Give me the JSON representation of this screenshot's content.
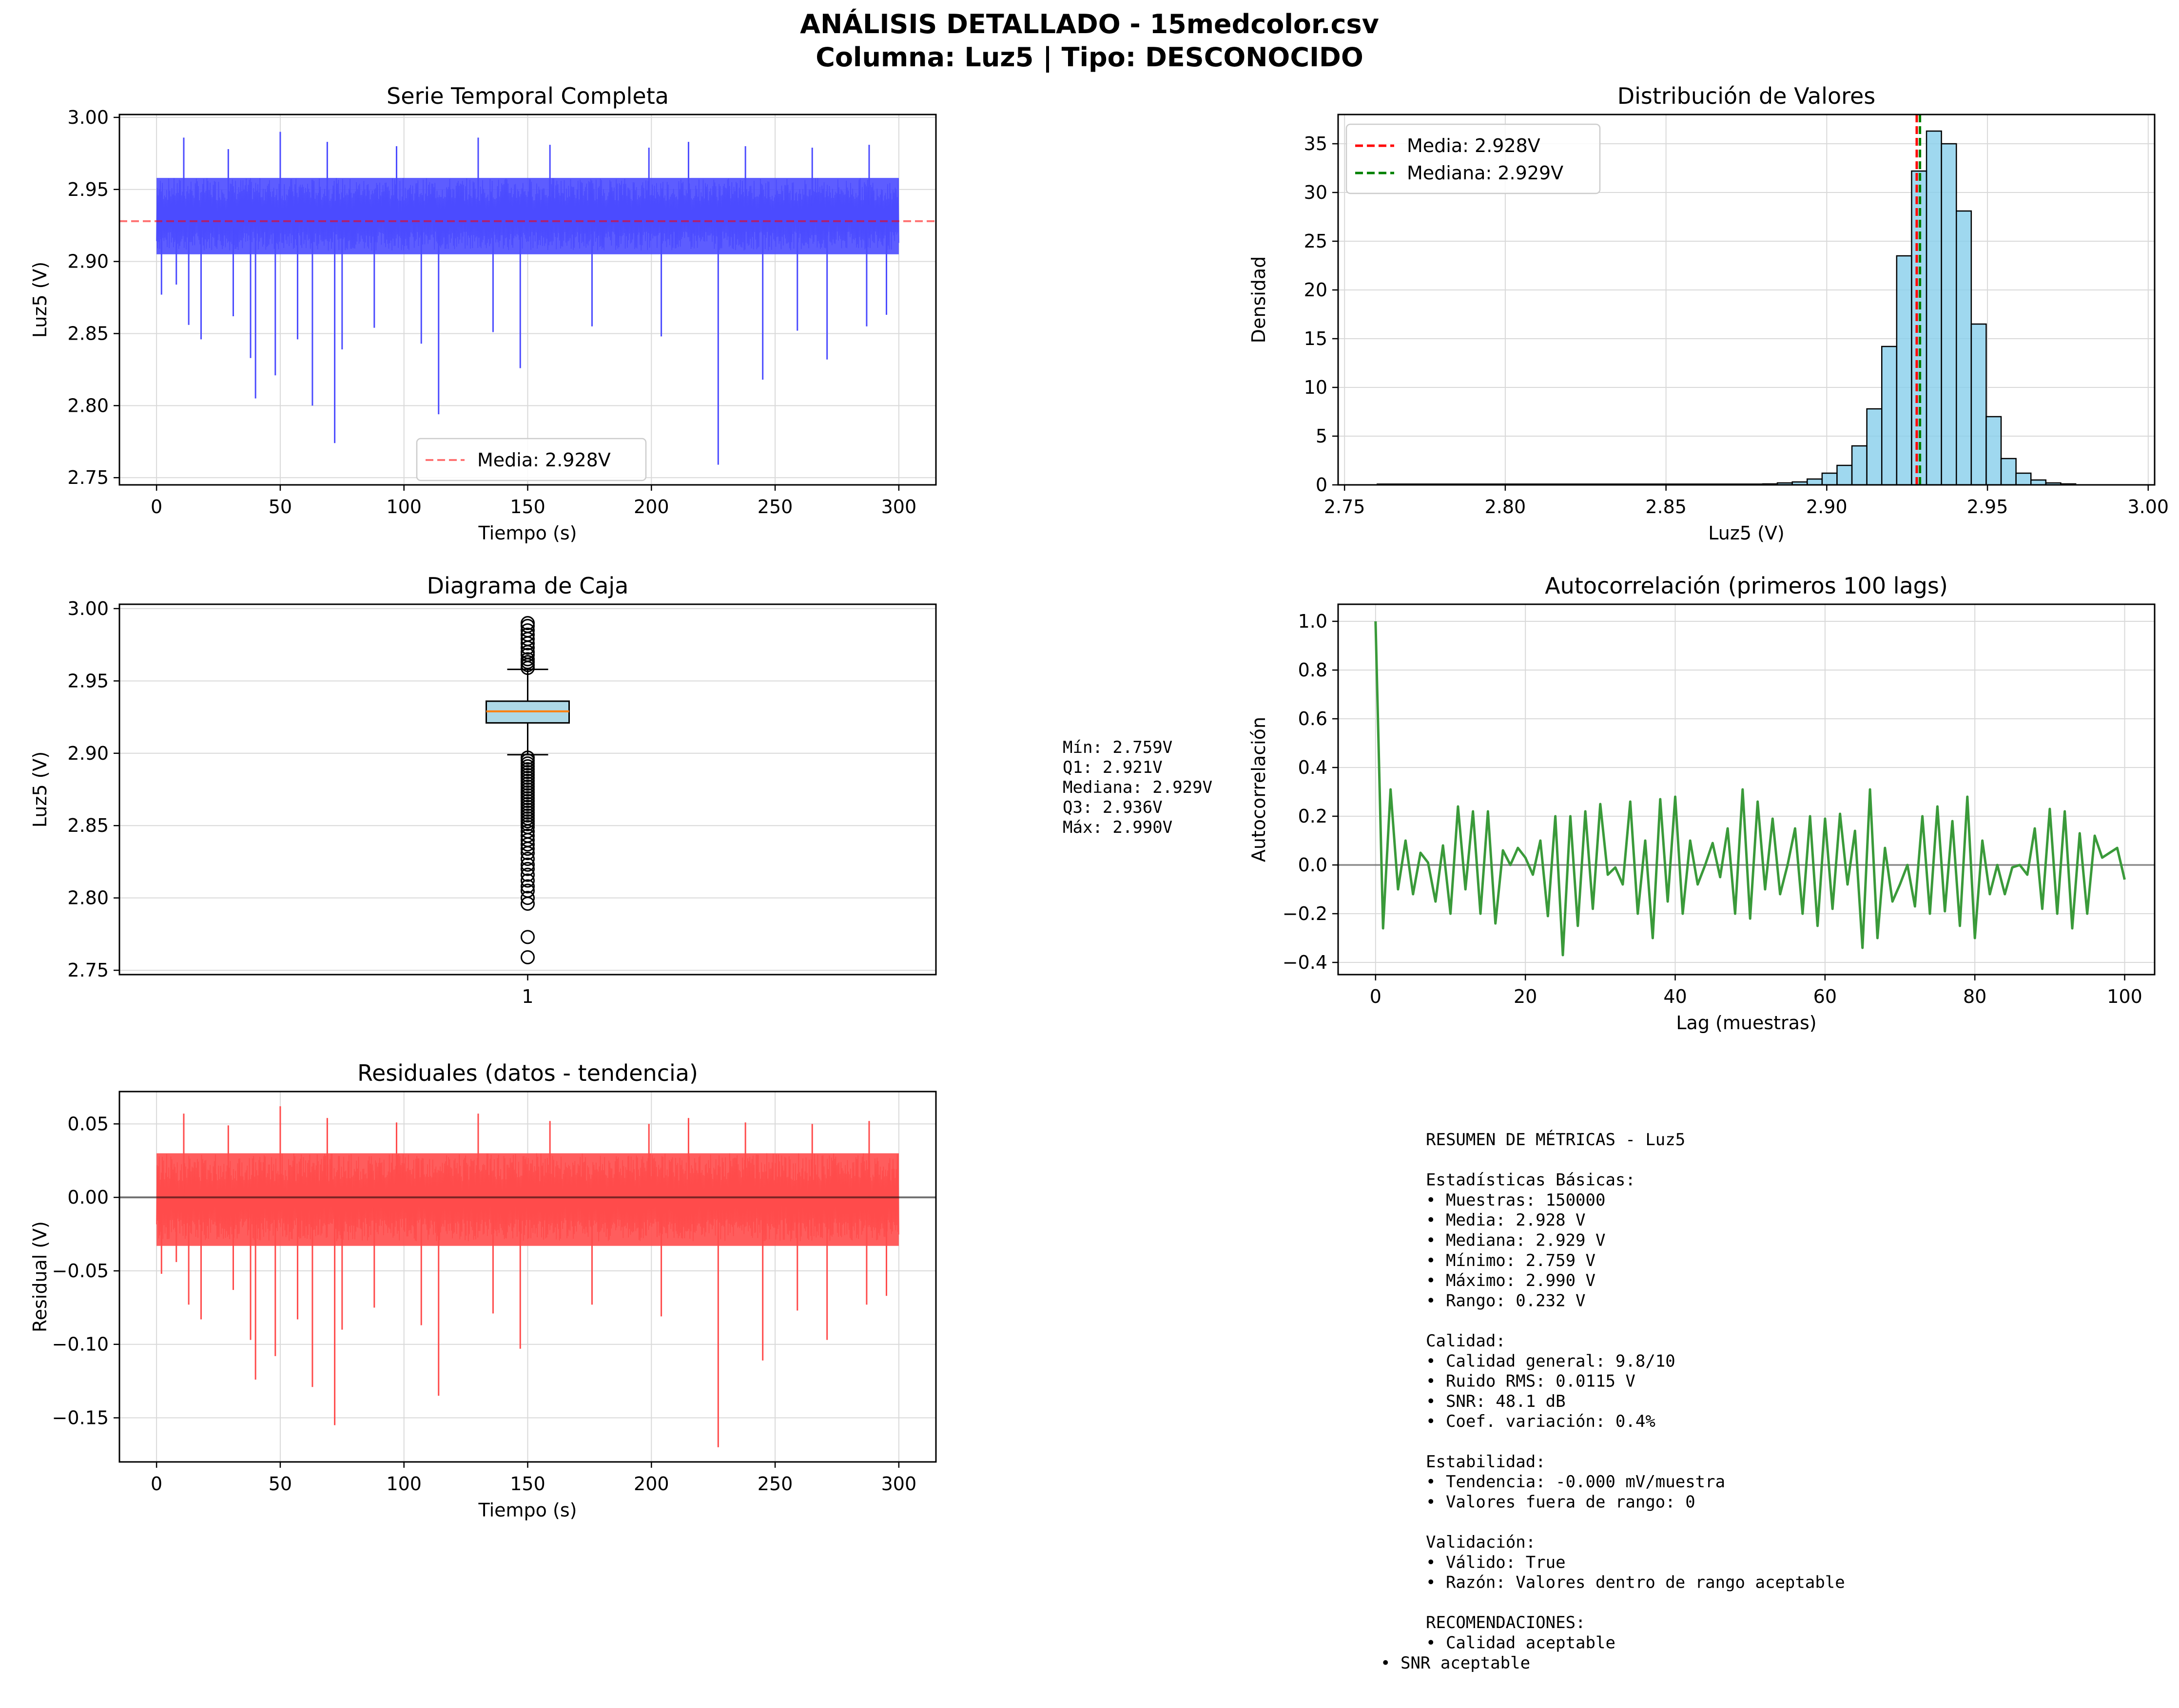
{
  "figure": {
    "title_line1": "ANÁLISIS DETALLADO - 15medcolor.csv",
    "title_line2": "Columna: Luz5 | Tipo: DESCONOCIDO"
  },
  "colors": {
    "series_blue": "#4b4bff",
    "mean_red": "#ff0000",
    "median_green": "#007f00",
    "hist_fill": "#87ceeb",
    "box_fill": "#add8e6",
    "box_median": "#ff7f0e",
    "acf_green": "#3a9a3a",
    "resid_red": "#ff4b4b",
    "grid": "#d9d9d9"
  },
  "chart_data": [
    {
      "id": "serie-temporal",
      "type": "line",
      "title": "Serie Temporal Completa",
      "xlabel": "Tiempo (s)",
      "ylabel": "Luz5 (V)",
      "xlim": [
        -15,
        315
      ],
      "ylim": [
        2.745,
        3.002
      ],
      "xticks": [
        0,
        50,
        100,
        150,
        200,
        250,
        300
      ],
      "yticks": [
        2.75,
        2.8,
        2.85,
        2.9,
        2.95,
        3.0
      ],
      "ytick_labels": [
        "2.75",
        "2.80",
        "2.85",
        "2.90",
        "2.95",
        "3.00"
      ],
      "band": {
        "x": [
          0,
          300
        ],
        "y_low": 2.905,
        "y_high": 2.958
      },
      "spikes_down": [
        [
          2,
          2.877
        ],
        [
          8,
          2.884
        ],
        [
          13,
          2.856
        ],
        [
          18,
          2.846
        ],
        [
          31,
          2.862
        ],
        [
          38,
          2.833
        ],
        [
          40,
          2.805
        ],
        [
          48,
          2.821
        ],
        [
          57,
          2.846
        ],
        [
          63,
          2.8
        ],
        [
          72,
          2.774
        ],
        [
          75,
          2.839
        ],
        [
          88,
          2.854
        ],
        [
          107,
          2.843
        ],
        [
          114,
          2.794
        ],
        [
          136,
          2.851
        ],
        [
          147,
          2.826
        ],
        [
          176,
          2.855
        ],
        [
          204,
          2.848
        ],
        [
          227,
          2.759
        ],
        [
          245,
          2.818
        ],
        [
          259,
          2.852
        ],
        [
          271,
          2.832
        ],
        [
          287,
          2.855
        ],
        [
          295,
          2.863
        ]
      ],
      "spikes_up": [
        [
          11,
          2.986
        ],
        [
          29,
          2.978
        ],
        [
          50,
          2.99
        ],
        [
          69,
          2.983
        ],
        [
          97,
          2.98
        ],
        [
          130,
          2.986
        ],
        [
          159,
          2.981
        ],
        [
          199,
          2.979
        ],
        [
          215,
          2.983
        ],
        [
          238,
          2.98
        ],
        [
          265,
          2.979
        ],
        [
          288,
          2.981
        ]
      ],
      "mean_line": 2.928,
      "legend": [
        "Media: 2.928V"
      ]
    },
    {
      "id": "distribucion",
      "type": "bar",
      "title": "Distribución de Valores",
      "xlabel": "Luz5 (V)",
      "ylabel": "Densidad",
      "xlim": [
        2.748,
        3.002
      ],
      "ylim": [
        0,
        38
      ],
      "xticks": [
        2.75,
        2.8,
        2.85,
        2.9,
        2.95,
        3.0
      ],
      "xtick_labels": [
        "2.75",
        "2.80",
        "2.85",
        "2.90",
        "2.95",
        "3.00"
      ],
      "yticks": [
        0,
        5,
        10,
        15,
        20,
        25,
        30,
        35
      ],
      "bins": {
        "edges_start": 2.88,
        "bin_width": 0.00464,
        "values": [
          0.1,
          0.2,
          0.3,
          0.6,
          1.2,
          2.0,
          4.0,
          7.8,
          14.2,
          23.5,
          32.2,
          36.3,
          35.0,
          28.1,
          16.5,
          7.0,
          2.7,
          1.2,
          0.5,
          0.2,
          0.1
        ]
      },
      "mean_line": 2.928,
      "median_line": 2.929,
      "legend": [
        "Media: 2.928V",
        "Mediana: 2.929V"
      ]
    },
    {
      "id": "diagrama-caja",
      "type": "box",
      "title": "Diagrama de Caja",
      "ylabel": "Luz5 (V)",
      "ylim": [
        2.747,
        3.003
      ],
      "yticks": [
        2.75,
        2.8,
        2.85,
        2.9,
        2.95,
        3.0
      ],
      "ytick_labels": [
        "2.75",
        "2.80",
        "2.85",
        "2.90",
        "2.95",
        "3.00"
      ],
      "xtick_labels": [
        "1"
      ],
      "box": {
        "q1": 2.921,
        "median": 2.929,
        "q3": 2.936,
        "whisker_low": 2.899,
        "whisker_high": 2.958
      },
      "outliers": [
        2.99,
        2.988,
        2.985,
        2.982,
        2.979,
        2.976,
        2.973,
        2.97,
        2.968,
        2.965,
        2.963,
        2.961,
        2.959,
        2.897,
        2.895,
        2.893,
        2.891,
        2.889,
        2.887,
        2.885,
        2.883,
        2.881,
        2.879,
        2.877,
        2.875,
        2.873,
        2.871,
        2.869,
        2.867,
        2.865,
        2.863,
        2.861,
        2.859,
        2.857,
        2.855,
        2.853,
        2.851,
        2.849,
        2.846,
        2.843,
        2.84,
        2.837,
        2.834,
        2.831,
        2.827,
        2.823,
        2.82,
        2.816,
        2.812,
        2.808,
        2.805,
        2.8,
        2.796,
        2.773,
        2.759
      ],
      "stats_text": [
        "Mín: 2.759V",
        "Q1: 2.921V",
        "Mediana: 2.929V",
        "Q3: 2.936V",
        "Máx: 2.990V"
      ]
    },
    {
      "id": "autocorrelacion",
      "type": "line",
      "title": "Autocorrelación (primeros 100 lags)",
      "xlabel": "Lag (muestras)",
      "ylabel": "Autocorrelación",
      "xlim": [
        -5,
        104
      ],
      "ylim": [
        -0.45,
        1.07
      ],
      "xticks": [
        0,
        20,
        40,
        60,
        80,
        100
      ],
      "yticks": [
        -0.4,
        -0.2,
        0.0,
        0.2,
        0.4,
        0.6,
        0.8,
        1.0
      ],
      "ytick_labels": [
        "−0.4",
        "−0.2",
        "0.0",
        "0.2",
        "0.4",
        "0.6",
        "0.8",
        "1.0"
      ],
      "values": [
        1.0,
        -0.26,
        0.31,
        -0.1,
        0.1,
        -0.12,
        0.05,
        0.01,
        -0.15,
        0.08,
        -0.2,
        0.24,
        -0.1,
        0.22,
        -0.2,
        0.22,
        -0.24,
        0.06,
        0.0,
        0.07,
        0.03,
        -0.04,
        0.1,
        -0.21,
        0.2,
        -0.37,
        0.2,
        -0.25,
        0.22,
        -0.18,
        0.25,
        -0.04,
        -0.01,
        -0.08,
        0.26,
        -0.2,
        0.1,
        -0.3,
        0.27,
        -0.15,
        0.28,
        -0.2,
        0.1,
        -0.08,
        0.0,
        0.09,
        -0.05,
        0.15,
        -0.2,
        0.31,
        -0.22,
        0.26,
        -0.1,
        0.19,
        -0.12,
        0.0,
        0.15,
        -0.2,
        0.2,
        -0.25,
        0.19,
        -0.18,
        0.21,
        -0.08,
        0.14,
        -0.34,
        0.31,
        -0.3,
        0.07,
        -0.15,
        -0.08,
        0.0,
        -0.17,
        0.2,
        -0.2,
        0.24,
        -0.19,
        0.18,
        -0.25,
        0.28,
        -0.3,
        0.1,
        -0.12,
        0.0,
        -0.12,
        -0.01,
        0.0,
        -0.04,
        0.15,
        -0.18,
        0.23,
        -0.2,
        0.22,
        -0.26,
        0.13,
        -0.2,
        0.12,
        0.03,
        0.05,
        0.07,
        -0.06
      ],
      "zero_line": 0.0
    },
    {
      "id": "residuales",
      "type": "line",
      "title": "Residuales (datos - tendencia)",
      "xlabel": "Tiempo (s)",
      "ylabel": "Residual (V)",
      "xlim": [
        -15,
        315
      ],
      "ylim": [
        -0.18,
        0.072
      ],
      "xticks": [
        0,
        50,
        100,
        150,
        200,
        250,
        300
      ],
      "yticks": [
        -0.15,
        -0.1,
        -0.05,
        0.0,
        0.05
      ],
      "ytick_labels": [
        "−0.15",
        "−0.10",
        "−0.05",
        "0.00",
        "0.05"
      ],
      "band": {
        "x": [
          0,
          300
        ],
        "y_low": -0.033,
        "y_high": 0.03
      },
      "spikes_down": [
        [
          2,
          -0.052
        ],
        [
          8,
          -0.044
        ],
        [
          13,
          -0.073
        ],
        [
          18,
          -0.083
        ],
        [
          31,
          -0.063
        ],
        [
          38,
          -0.097
        ],
        [
          40,
          -0.124
        ],
        [
          48,
          -0.108
        ],
        [
          57,
          -0.083
        ],
        [
          63,
          -0.129
        ],
        [
          72,
          -0.155
        ],
        [
          75,
          -0.09
        ],
        [
          88,
          -0.075
        ],
        [
          107,
          -0.087
        ],
        [
          114,
          -0.135
        ],
        [
          136,
          -0.079
        ],
        [
          147,
          -0.103
        ],
        [
          176,
          -0.073
        ],
        [
          204,
          -0.081
        ],
        [
          227,
          -0.17
        ],
        [
          245,
          -0.111
        ],
        [
          259,
          -0.077
        ],
        [
          271,
          -0.097
        ],
        [
          287,
          -0.073
        ],
        [
          295,
          -0.067
        ]
      ],
      "spikes_up": [
        [
          11,
          0.057
        ],
        [
          29,
          0.049
        ],
        [
          50,
          0.062
        ],
        [
          69,
          0.054
        ],
        [
          97,
          0.051
        ],
        [
          130,
          0.057
        ],
        [
          159,
          0.052
        ],
        [
          199,
          0.05
        ],
        [
          215,
          0.054
        ],
        [
          238,
          0.051
        ],
        [
          265,
          0.05
        ],
        [
          288,
          0.052
        ]
      ],
      "zero_line": 0.0
    }
  ],
  "summary": {
    "lines": [
      "RESUMEN DE MÉTRICAS - Luz5",
      "",
      "Estadísticas Básicas:",
      "• Muestras: 150000",
      "• Media: 2.928 V",
      "• Mediana: 2.929 V",
      "• Mínimo: 2.759 V",
      "• Máximo: 2.990 V",
      "• Rango: 0.232 V",
      "",
      "Calidad:",
      "• Calidad general: 9.8/10",
      "• Ruido RMS: 0.0115 V",
      "• SNR: 48.1 dB",
      "• Coef. variación: 0.4%",
      "",
      "Estabilidad:",
      "• Tendencia: -0.000 mV/muestra",
      "• Valores fuera de rango: 0",
      "",
      "Validación:",
      "• Válido: True",
      "• Razón: Valores dentro de rango aceptable",
      "",
      "RECOMENDACIONES:",
      "• Calidad aceptable"
    ],
    "last_line": "• SNR aceptable"
  }
}
